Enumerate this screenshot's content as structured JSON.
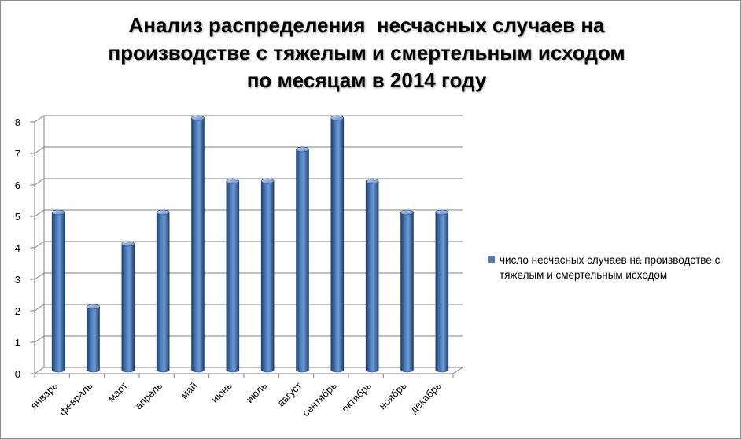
{
  "chart_data": {
    "type": "bar",
    "title_lines": [
      "Анализ распределения  несчасных случаев на",
      "производстве с тяжелым и смертельным исходом",
      "по месяцам в 2014 году"
    ],
    "categories": [
      "январь",
      "февраль",
      "март",
      "апрель",
      "май",
      "июнь",
      "июль",
      "август",
      "сентябрь",
      "октябрь",
      "ноябрь",
      "декабрь"
    ],
    "series": [
      {
        "name": "число несчасных случаев на производстве с тяжелым и смертельным исходом",
        "values": [
          5,
          2,
          4,
          5,
          8,
          6,
          6,
          7,
          8,
          6,
          5,
          5
        ]
      }
    ],
    "ylim": [
      0,
      8
    ],
    "yticks": [
      0,
      1,
      2,
      3,
      4,
      5,
      6,
      7,
      8
    ],
    "grid": true,
    "legend_position": "right",
    "style": "3d-cylinder",
    "colors": {
      "bar": "#4a7ebb",
      "bar_dark": "#1f3f6e",
      "bar_light": "#9dc0ec",
      "grid": "#7f7f7f"
    }
  }
}
